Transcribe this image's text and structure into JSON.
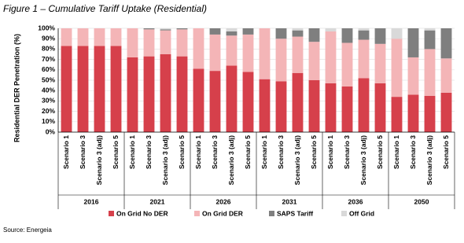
{
  "chart_data": {
    "type": "stacked-bar",
    "title": "Figure 1 – Cumulative Tariff Uptake (Residential)",
    "y_label": "Residential DER Penetration (%)",
    "source": "Source: Energeia",
    "groups": [
      {
        "label": "2016",
        "categories": [
          "Scenario 1",
          "Scenario 3",
          "Scenario 3 (adj)",
          "Scenario 5"
        ]
      },
      {
        "label": "2021",
        "categories": [
          "Scenario 1",
          "Scenario 3",
          "Scenario 3 (adj)",
          "Scenario 5"
        ]
      },
      {
        "label": "2026",
        "categories": [
          "Scenario 1",
          "Scenario 3",
          "Scenario 3 (adj)",
          "Scenario 5"
        ]
      },
      {
        "label": "2031",
        "categories": [
          "Scenario 1",
          "Scenario 3",
          "Scenario 3 (adj)",
          "Scenario 5"
        ]
      },
      {
        "label": "2036",
        "categories": [
          "Scenario 1",
          "Scenario 3",
          "Scenario 3 (adj)",
          "Scenario 5"
        ]
      },
      {
        "label": "2050",
        "categories": [
          "Scenario 1",
          "Scenario 3",
          "Scenario 3 (adj)",
          "Scenario 5"
        ]
      }
    ],
    "series": [
      {
        "name": "On Grid No DER",
        "color": "#d6404b",
        "values": [
          83,
          83,
          83,
          83,
          72,
          73,
          75,
          73,
          61,
          59,
          64,
          58,
          51,
          49,
          57,
          50,
          47,
          44,
          52,
          47,
          34,
          36,
          35,
          38
        ]
      },
      {
        "name": "On Grid DER",
        "color": "#f4b5b7",
        "values": [
          17,
          17,
          17,
          17,
          28,
          26,
          23,
          26,
          39,
          35,
          29,
          36,
          49,
          41,
          35,
          37,
          50,
          42,
          37,
          38,
          56,
          36,
          45,
          33
        ]
      },
      {
        "name": "SAPS Tariff",
        "color": "#7f7f7f",
        "values": [
          0,
          0,
          0,
          0,
          0,
          1,
          1,
          1,
          0,
          6,
          4,
          6,
          0,
          10,
          6,
          13,
          0,
          14,
          9,
          15,
          0,
          28,
          18,
          29
        ]
      },
      {
        "name": "Off Grid",
        "color": "#d9d9d9",
        "values": [
          0,
          0,
          0,
          0,
          0,
          0,
          1,
          0,
          0,
          0,
          3,
          0,
          0,
          0,
          2,
          0,
          3,
          0,
          2,
          0,
          10,
          0,
          2,
          0
        ]
      }
    ],
    "ylim": [
      0,
      100
    ],
    "yticks": [
      {
        "value": 0,
        "label": "0%"
      },
      {
        "value": 10,
        "label": "10%"
      },
      {
        "value": 20,
        "label": "20%"
      },
      {
        "value": 30,
        "label": "30%"
      },
      {
        "value": 40,
        "label": "40%"
      },
      {
        "value": 50,
        "label": "50%"
      },
      {
        "value": 60,
        "label": "60%"
      },
      {
        "value": 70,
        "label": "70%"
      },
      {
        "value": 80,
        "label": "80%"
      },
      {
        "value": 90,
        "label": "90%"
      },
      {
        "value": 100,
        "label": "100%"
      }
    ],
    "grid": true
  }
}
